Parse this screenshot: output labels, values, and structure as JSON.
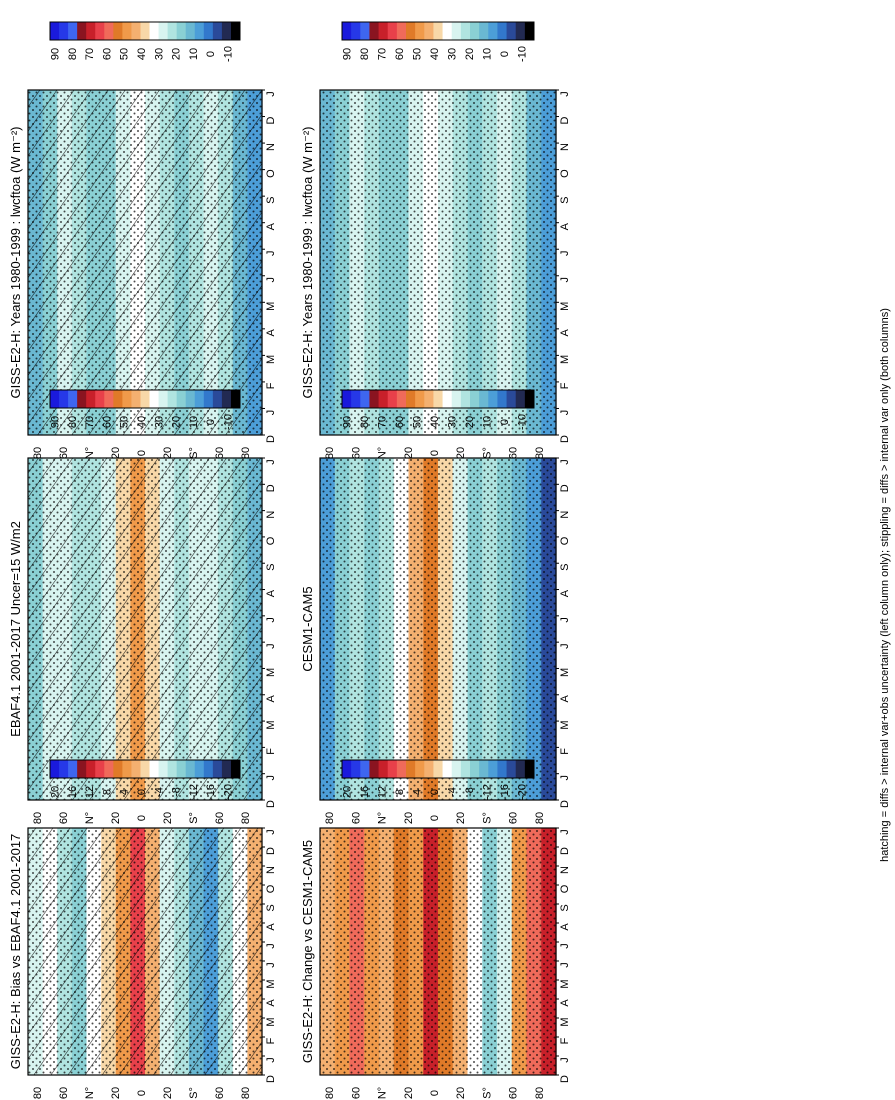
{
  "footnote": "hatching = diffs > internal var+obs uncertainty (left column only); stippling = diffs > internal var only (both columns)",
  "legend_a": [
    "90",
    "80",
    "70",
    "60",
    "50",
    "40",
    "30",
    "20",
    "10",
    "0",
    "-10"
  ],
  "legend_b": [
    "20",
    "16",
    "12",
    "8",
    "4",
    "0",
    "-4",
    "-8",
    "-12",
    "-16",
    "-20"
  ],
  "palette": [
    "#1a1adc",
    "#2638e8",
    "#3e66f0",
    "#8a1420",
    "#c8202a",
    "#e8404a",
    "#f06a5a",
    "#e07a28",
    "#f09a4a",
    "#f4b070",
    "#f8d8a8",
    "#ffffff",
    "#d8f4f0",
    "#b0e4e0",
    "#8ad0d4",
    "#6ab8d2",
    "#4c9ed8",
    "#3278cc",
    "#2a4a9a",
    "#222a52",
    "#000000"
  ],
  "chart_data": [
    {
      "type": "heatmap",
      "title": "GISS-E2-H: Years 1980-1999 : lwcftoa (W m⁻²)",
      "xlabel": "latitude",
      "ylabel": "month",
      "lat_ticks": [
        "80",
        "60",
        "N°",
        "20",
        "0",
        "20",
        "S°",
        "60",
        "80"
      ],
      "months": [
        "D",
        "J",
        "F",
        "M",
        "A",
        "M",
        "J",
        "J",
        "A",
        "S",
        "O",
        "N",
        "D",
        "J"
      ],
      "hatching": true,
      "stippling": true,
      "colorbar": "legend_a",
      "zlim": [
        -10,
        90
      ],
      "lat_profile": [
        14,
        22,
        28,
        26,
        20,
        18,
        28,
        34,
        30,
        24,
        20,
        26,
        30,
        24,
        16,
        8
      ]
    },
    {
      "type": "heatmap",
      "title": "GISS-E2-H: Years 1980-1999 : lwcftoa (W m⁻²)",
      "xlabel": "latitude",
      "ylabel": "month",
      "lat_ticks": [
        "80",
        "60",
        "N°",
        "20",
        "0",
        "20",
        "S°",
        "60",
        "80"
      ],
      "months": [
        "D",
        "J",
        "F",
        "M",
        "A",
        "M",
        "J",
        "J",
        "A",
        "S",
        "O",
        "N",
        "D",
        "J"
      ],
      "hatching": false,
      "stippling": true,
      "colorbar": "legend_a",
      "zlim": [
        -10,
        90
      ],
      "lat_profile": [
        14,
        22,
        28,
        26,
        20,
        18,
        28,
        34,
        30,
        24,
        20,
        26,
        30,
        24,
        16,
        8
      ]
    },
    {
      "type": "heatmap",
      "title": "EBAF4.1 2001-2017 Uncer=15 W/m2",
      "xlabel": "latitude",
      "ylabel": "month",
      "lat_ticks": [
        "80",
        "60",
        "N°",
        "20",
        "0",
        "20",
        "S°",
        "60",
        "80"
      ],
      "months": [
        "D",
        "J",
        "F",
        "M",
        "A",
        "M",
        "J",
        "J",
        "A",
        "S",
        "O",
        "N",
        "D",
        "J"
      ],
      "hatching": true,
      "stippling": true,
      "colorbar": "legend_a",
      "zlim": [
        -10,
        90
      ],
      "lat_profile": [
        22,
        28,
        30,
        26,
        24,
        32,
        40,
        48,
        38,
        30,
        26,
        30,
        28,
        24,
        18,
        14
      ]
    },
    {
      "type": "heatmap",
      "title": "CESM1-CAM5",
      "xlabel": "latitude",
      "ylabel": "month",
      "lat_ticks": [
        "80",
        "60",
        "N°",
        "20",
        "0",
        "20",
        "S°",
        "60",
        "80"
      ],
      "months": [
        "D",
        "J",
        "F",
        "M",
        "A",
        "M",
        "J",
        "J",
        "A",
        "S",
        "O",
        "N",
        "D",
        "J"
      ],
      "hatching": false,
      "stippling": true,
      "colorbar": "legend_a",
      "zlim": [
        -10,
        90
      ],
      "lat_profile": [
        10,
        18,
        24,
        22,
        26,
        34,
        44,
        54,
        40,
        28,
        22,
        26,
        22,
        16,
        8,
        2
      ]
    },
    {
      "type": "heatmap",
      "title": "GISS-E2-H: Bias vs EBAF4.1 2001-2017",
      "xlabel": "latitude",
      "ylabel": "month",
      "lat_ticks": [
        "80",
        "60",
        "N°",
        "20",
        "0",
        "20",
        "S°",
        "60",
        "80"
      ],
      "months": [
        "D",
        "J",
        "F",
        "M",
        "A",
        "M",
        "J",
        "J",
        "A",
        "S",
        "O",
        "N",
        "D",
        "J"
      ],
      "hatching": true,
      "stippling": true,
      "colorbar": "legend_b",
      "zlim": [
        -20,
        20
      ],
      "lat_profile": [
        -4,
        -2,
        -6,
        -8,
        -2,
        0,
        4,
        10,
        2,
        -4,
        -6,
        -10,
        -12,
        -6,
        -2,
        2
      ]
    },
    {
      "type": "heatmap",
      "title": "GISS-E2-H: Change vs CESM1-CAM5",
      "xlabel": "latitude",
      "ylabel": "month",
      "lat_ticks": [
        "80",
        "60",
        "N°",
        "20",
        "0",
        "20",
        "S°",
        "60",
        "80"
      ],
      "months": [
        "D",
        "J",
        "F",
        "M",
        "A",
        "M",
        "J",
        "J",
        "A",
        "S",
        "O",
        "N",
        "D",
        "J"
      ],
      "hatching": false,
      "stippling": true,
      "colorbar": "legend_b",
      "zlim": [
        -20,
        20
      ],
      "lat_profile": [
        2,
        4,
        8,
        4,
        2,
        6,
        4,
        12,
        6,
        2,
        -2,
        -8,
        -4,
        4,
        8,
        12
      ]
    }
  ]
}
